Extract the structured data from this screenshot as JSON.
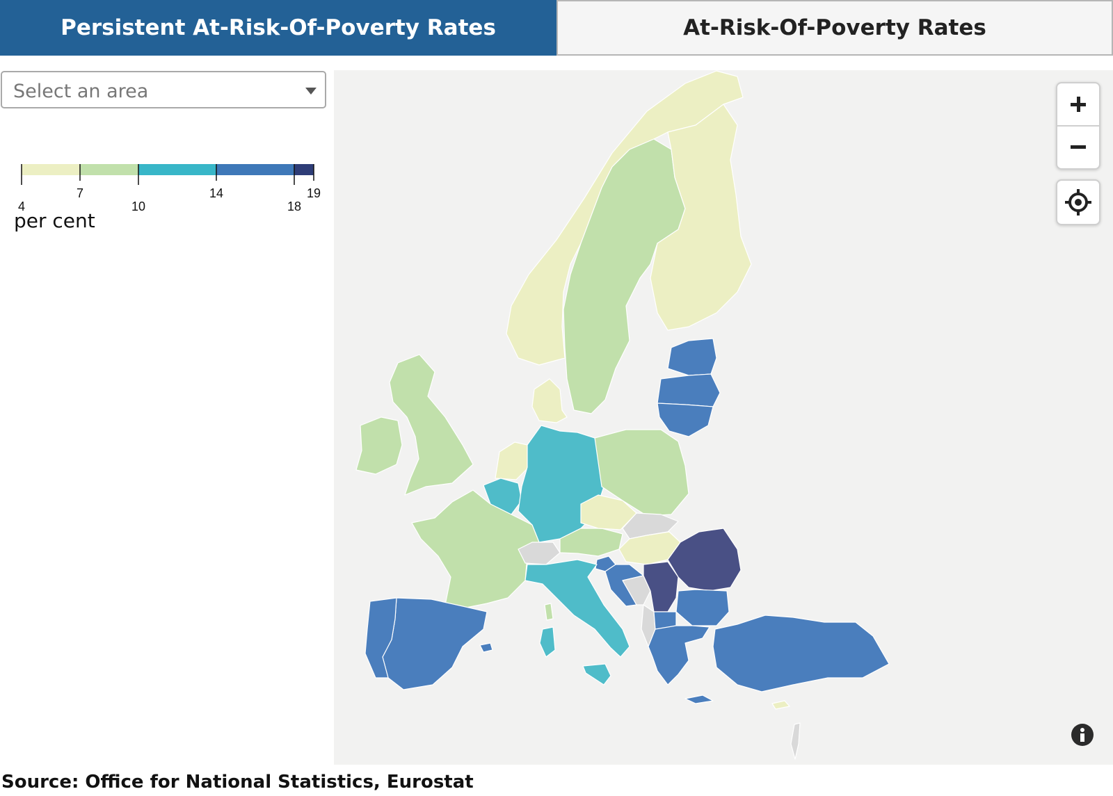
{
  "tabs": [
    {
      "label": "Persistent At-Risk-Of-Poverty Rates",
      "active": true
    },
    {
      "label": "At-Risk-Of-Poverty Rates",
      "active": false
    }
  ],
  "area_select": {
    "placeholder": "Select an area"
  },
  "legend": {
    "unit": "per cent",
    "breaks": [
      4,
      7,
      10,
      14,
      18,
      19
    ],
    "colors": [
      "#ecefc3",
      "#c1e0ab",
      "#38b6c8",
      "#3e78b8",
      "#2e3d77"
    ]
  },
  "map_colors": {
    "background": "#f2f2f1",
    "no_data": "#d9d9d9",
    "band_4_7": "#ecefc3",
    "band_7_10": "#c1e0ab",
    "band_10_14": "#4fbcc9",
    "band_14_18": "#4a7ebd",
    "band_18_19": "#495085"
  },
  "controls": {
    "zoom_in": "plus-icon",
    "zoom_out": "minus-icon",
    "locate": "crosshair-icon",
    "info": "info-icon"
  },
  "source": "Source: Office for National Statistics, Eurostat"
}
